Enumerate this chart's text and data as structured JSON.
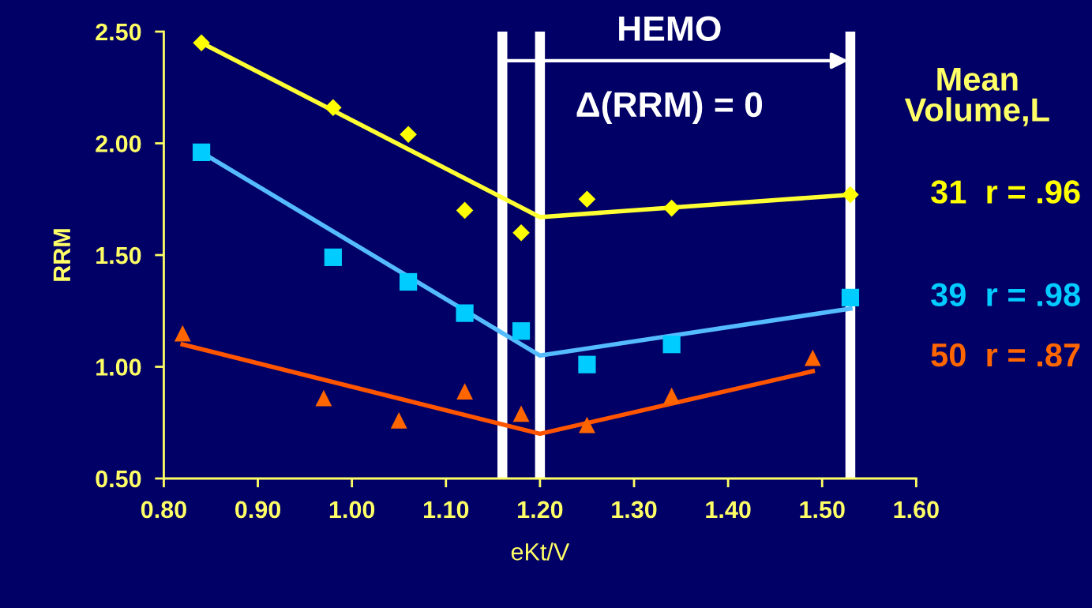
{
  "chart_data": {
    "type": "scatter",
    "xlabel": "eKt/V",
    "ylabel": "RRM",
    "legend_title": "Mean Volume,L",
    "legend": "right",
    "grid": false,
    "xlim": [
      0.8,
      1.6
    ],
    "xticks": [
      {
        "value": 0.8,
        "label": "0.80"
      },
      {
        "value": 0.9,
        "label": "0.90"
      },
      {
        "value": 1.0,
        "label": "1.00"
      },
      {
        "value": 1.1,
        "label": "1.10"
      },
      {
        "value": 1.2,
        "label": "1.20"
      },
      {
        "value": 1.3,
        "label": "1.30"
      },
      {
        "value": 1.4,
        "label": "1.40"
      },
      {
        "value": 1.5,
        "label": "1.50"
      },
      {
        "value": 1.6,
        "label": "1.60"
      }
    ],
    "ylim": [
      0.5,
      2.5
    ],
    "yticks": [
      {
        "value": 0.5,
        "label": "0.50"
      },
      {
        "value": 1.0,
        "label": "1.00"
      },
      {
        "value": 1.5,
        "label": "1.50"
      },
      {
        "value": 2.0,
        "label": "2.00"
      },
      {
        "value": 2.5,
        "label": "2.50"
      }
    ],
    "series": [
      {
        "name": "31  r = .96",
        "marker": "diamond",
        "color": "#ffff00",
        "x": [
          0.84,
          0.98,
          1.06,
          1.12,
          1.18,
          1.25,
          1.34,
          1.53
        ],
        "values": [
          2.45,
          2.16,
          2.04,
          1.7,
          1.6,
          1.75,
          1.71,
          1.77
        ]
      },
      {
        "name": "39  r = .98",
        "marker": "square",
        "color": "#00ccff",
        "x": [
          0.84,
          0.98,
          1.06,
          1.12,
          1.18,
          1.25,
          1.34,
          1.53
        ],
        "values": [
          1.96,
          1.49,
          1.38,
          1.24,
          1.16,
          1.01,
          1.1,
          1.31
        ]
      },
      {
        "name": "50  r = .87",
        "marker": "triangle",
        "color": "#ff6600",
        "x": [
          0.82,
          0.97,
          1.05,
          1.12,
          1.18,
          1.25,
          1.34,
          1.49
        ],
        "values": [
          1.15,
          0.86,
          0.76,
          0.89,
          0.79,
          0.74,
          0.87,
          1.04
        ]
      },
      {
        "type": "line",
        "marker": "none",
        "color": "#ffff33",
        "x": [
          0.84,
          1.2,
          1.53
        ],
        "values": [
          2.45,
          1.67,
          1.77
        ]
      },
      {
        "type": "line",
        "marker": "none",
        "color": "#55bbff",
        "x": [
          0.84,
          1.2,
          1.53
        ],
        "values": [
          1.96,
          1.05,
          1.26
        ]
      },
      {
        "type": "line",
        "marker": "none",
        "color": "#ff5500",
        "x": [
          0.82,
          1.2,
          1.49
        ],
        "values": [
          1.1,
          0.7,
          0.98
        ]
      }
    ],
    "ref_lines": [
      {
        "axis": "x",
        "value": 1.16,
        "color": "#ffffff"
      },
      {
        "axis": "x",
        "value": 1.2,
        "color": "#ffffff"
      },
      {
        "axis": "x",
        "value": 1.53,
        "color": "#ffffff"
      }
    ],
    "annotations": [
      "HEMO",
      "Δ(RRM) = 0"
    ]
  }
}
